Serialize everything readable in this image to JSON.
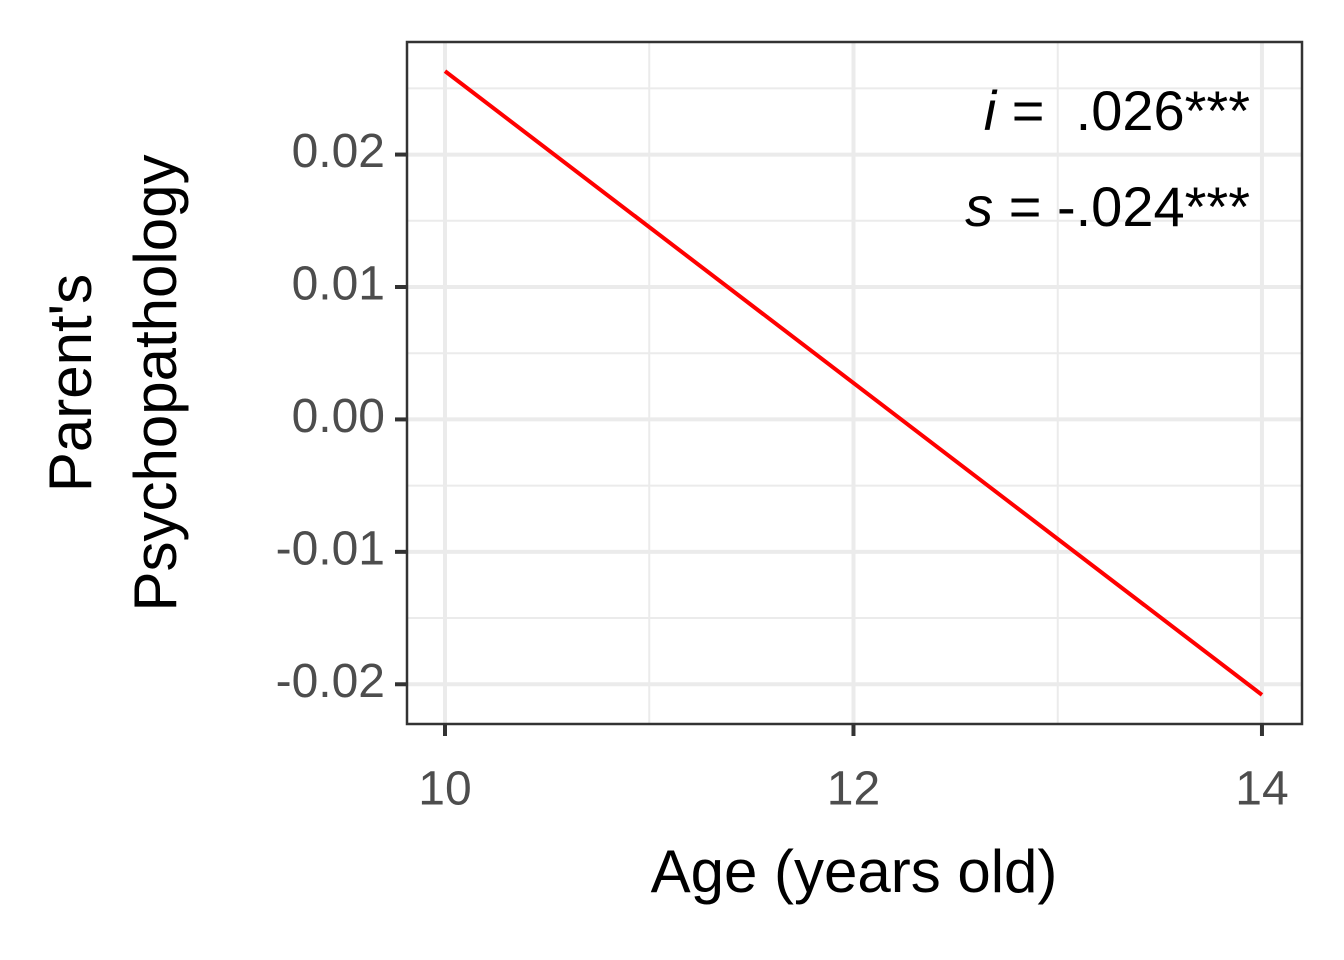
{
  "chart_data": {
    "type": "line",
    "x_label": "Age (years old)",
    "y_label": [
      "Parent's",
      "Psychopathology"
    ],
    "x": [
      10,
      14
    ],
    "series": [
      {
        "color": "#ff0000",
        "values": [
          0.0263,
          -0.0208
        ]
      }
    ],
    "xlim": [
      9.814,
      14.196
    ],
    "xticks": [
      10,
      12,
      14
    ],
    "minor_xticks": [
      11,
      13
    ],
    "ylim": [
      -0.023,
      0.0285
    ],
    "yticks": [
      -0.02,
      -0.01,
      {
        "value": 0,
        "label": "0.00"
      },
      0.01,
      0.02
    ],
    "minor_yticks": [
      -0.015,
      -0.005,
      0.005,
      0.015,
      0.025
    ],
    "grid": true,
    "annotations": [
      {
        "symbol": "i",
        "text": " =  .026***"
      },
      {
        "symbol": "s",
        "text": " = -.024***"
      }
    ]
  }
}
